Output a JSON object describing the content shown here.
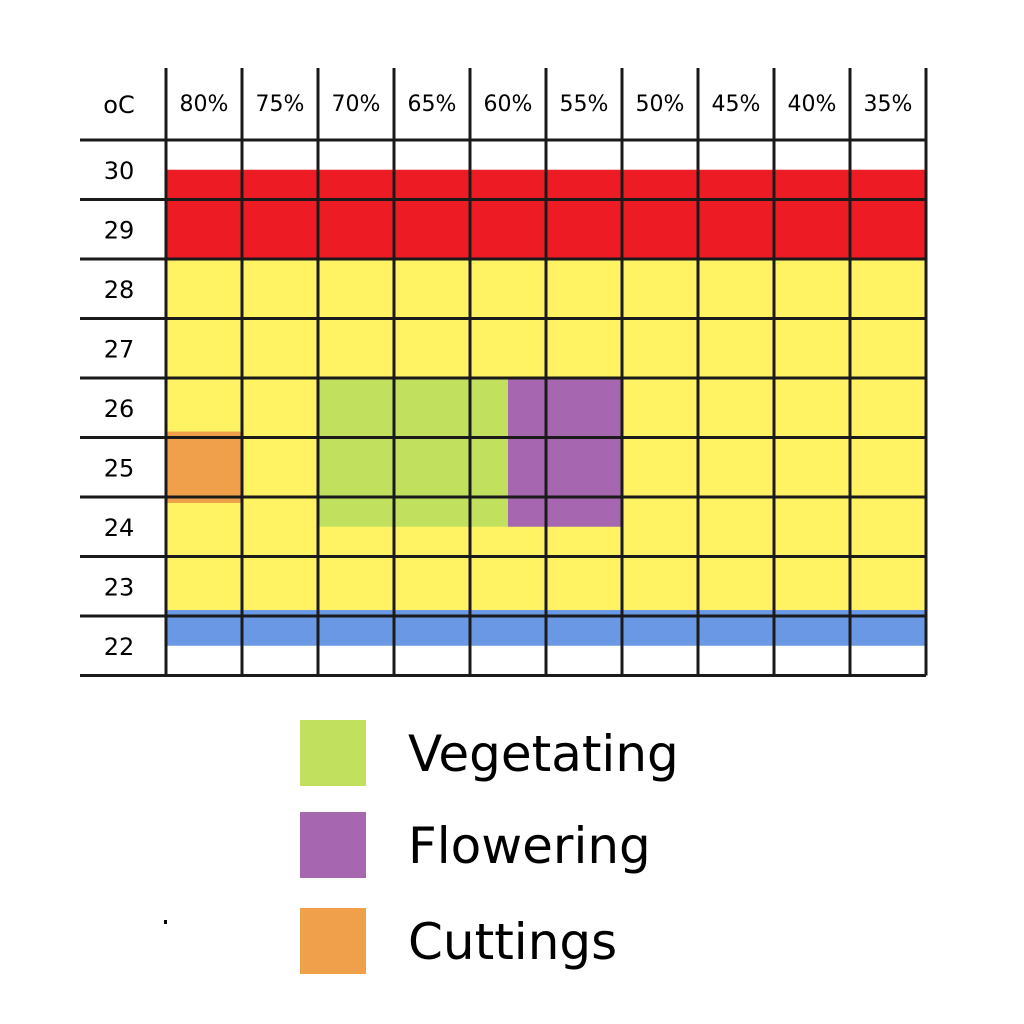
{
  "chart_data": {
    "type": "heatmap",
    "corner_label": "oC",
    "x_tick_labels": [
      "80%",
      "75%",
      "70%",
      "65%",
      "60%",
      "55%",
      "50%",
      "45%",
      "40%",
      "35%"
    ],
    "x_values": [
      80,
      75,
      70,
      65,
      60,
      55,
      50,
      45,
      40,
      35
    ],
    "y_tick_labels": [
      "30",
      "29",
      "28",
      "27",
      "26",
      "25",
      "24",
      "23",
      "22"
    ],
    "y_values": [
      30,
      29,
      28,
      27,
      26,
      25,
      24,
      23,
      22
    ],
    "bands": [
      {
        "color": "#ed1c24",
        "temp_from": 30,
        "temp_to": 28.5
      },
      {
        "color": "#fff263",
        "temp_from": 28.5,
        "temp_to": 22.6
      },
      {
        "color": "#6b98e5",
        "temp_from": 22.6,
        "temp_to": 22
      }
    ],
    "zones": [
      {
        "legend_index": 0,
        "color": "#c1e15e",
        "rh_from": 70,
        "rh_to": 57.5,
        "temp_from": 26.5,
        "temp_to": 24
      },
      {
        "legend_index": 1,
        "color": "#a666b0",
        "rh_from": 57.5,
        "rh_to": 50,
        "temp_from": 26.5,
        "temp_to": 24
      },
      {
        "legend_index": 2,
        "color": "#f0a04b",
        "rh_from": 80,
        "rh_to": 75,
        "temp_from": 25.6,
        "temp_to": 24.4
      }
    ],
    "legend": [
      {
        "label": "Vegetating",
        "color": "#c1e15e"
      },
      {
        "label": "Flowering",
        "color": "#a666b0"
      },
      {
        "label": "Cuttings",
        "color": "#f0a04b"
      }
    ],
    "grid": true
  }
}
